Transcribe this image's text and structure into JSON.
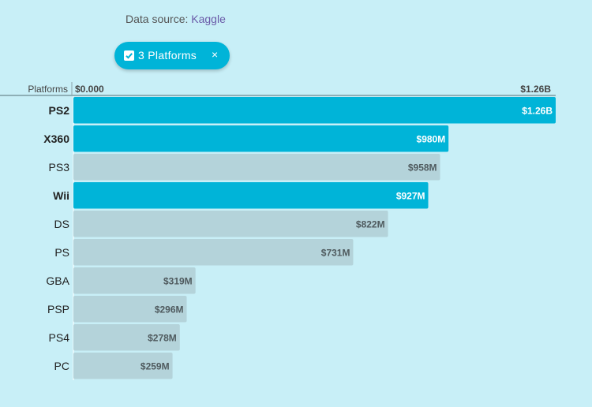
{
  "source": {
    "prefix": "Data source: ",
    "link": "Kaggle"
  },
  "filter_chip": {
    "label": "3 Platforms",
    "close": "×",
    "checked": true
  },
  "colors": {
    "background": "#c8eff7",
    "selected": "#00b4d8",
    "unselected": "#b4d3da",
    "selected_text": "#ffffff",
    "unselected_text": "#4f5a5e"
  },
  "chart_data": {
    "type": "bar",
    "orientation": "horizontal",
    "axis_title": "Platforms",
    "axis_min_label": "$0.000",
    "axis_max_label": "$1.26B",
    "xlim": [
      0,
      1260
    ],
    "unit": "$M",
    "categories": [
      "PS2",
      "X360",
      "PS3",
      "Wii",
      "DS",
      "PS",
      "GBA",
      "PSP",
      "PS4",
      "PC"
    ],
    "values": [
      1260,
      980,
      958,
      927,
      822,
      731,
      319,
      296,
      278,
      259
    ],
    "labels": [
      "$1.26B",
      "$980M",
      "$958M",
      "$927M",
      "$822M",
      "$731M",
      "$319M",
      "$296M",
      "$278M",
      "$259M"
    ],
    "selected": [
      true,
      true,
      false,
      true,
      false,
      false,
      false,
      false,
      false,
      false
    ]
  }
}
